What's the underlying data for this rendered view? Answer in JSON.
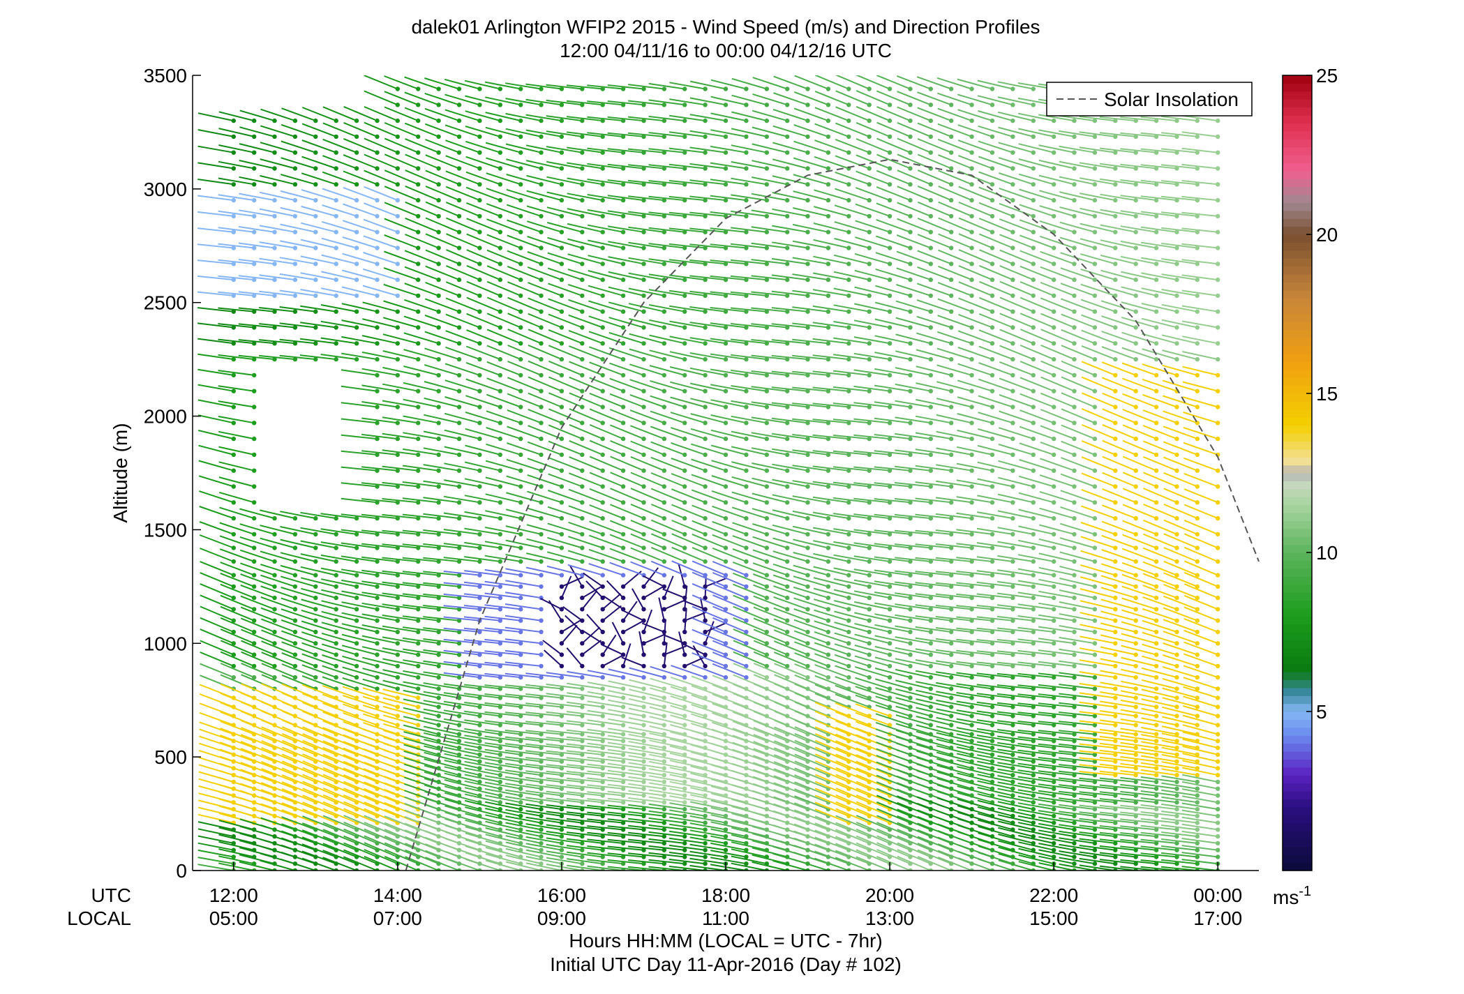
{
  "chart_data": {
    "type": "wind-barb-profile",
    "title": "dalek01 Arlington WFIP2 2015 - Wind Speed (m/s) and Direction Profiles",
    "subtitle": "12:00 04/11/16 to 00:00 04/12/16  UTC",
    "ylabel": "Altitude (m)",
    "xlabel": "Hours HH:MM  (LOCAL = UTC - 7hr)",
    "xlabel2": "Initial UTC Day 11-Apr-2016 (Day # 102)",
    "row_label_utc": "UTC",
    "row_label_local": "LOCAL",
    "xlim_hours_utc": [
      11.5,
      24.5
    ],
    "ylim": [
      0,
      3500
    ],
    "y_ticks": [
      "0",
      "500",
      "1000",
      "1500",
      "2000",
      "2500",
      "3000",
      "3500"
    ],
    "x_ticks_utc": [
      "12:00",
      "14:00",
      "16:00",
      "18:00",
      "20:00",
      "22:00",
      "00:00"
    ],
    "x_ticks_local": [
      "05:00",
      "07:00",
      "09:00",
      "11:00",
      "13:00",
      "15:00",
      "17:00"
    ],
    "legend": {
      "entries": [
        "Solar Insolation"
      ],
      "placement": "top-right"
    },
    "solar_insolation_curve": {
      "style": "dashed",
      "color": "#555555",
      "points": [
        [
          14.1,
          0
        ],
        [
          15,
          1100
        ],
        [
          16,
          1950
        ],
        [
          17,
          2500
        ],
        [
          18,
          2870
        ],
        [
          19,
          3060
        ],
        [
          20,
          3130
        ],
        [
          21,
          3060
        ],
        [
          22,
          2800
        ],
        [
          23,
          2420
        ],
        [
          24,
          1820
        ],
        [
          24.5,
          1360
        ]
      ]
    },
    "colorbar": {
      "range": [
        0,
        25
      ],
      "ticks": [
        "5",
        "10",
        "15",
        "20",
        "25"
      ],
      "unit_label": "ms",
      "unit_exponent": "-1",
      "stops": [
        [
          0,
          "#0b0a3a"
        ],
        [
          2,
          "#2a0f80"
        ],
        [
          3,
          "#5a20c0"
        ],
        [
          4.3,
          "#6c8ef0"
        ],
        [
          5,
          "#86b6f4"
        ],
        [
          5.6,
          "#3a8aa0"
        ],
        [
          6.3,
          "#0a7a10"
        ],
        [
          8,
          "#1c9c1c"
        ],
        [
          10,
          "#5cb45c"
        ],
        [
          11.5,
          "#a8d4a0"
        ],
        [
          12.2,
          "#c8d8c0"
        ],
        [
          12.5,
          "#b0b0b0"
        ],
        [
          12.8,
          "#f2e0a0"
        ],
        [
          14,
          "#f4d000"
        ],
        [
          16,
          "#f0a010"
        ],
        [
          18,
          "#c8863a"
        ],
        [
          20,
          "#7a5030"
        ],
        [
          21,
          "#a08890"
        ],
        [
          22,
          "#f06090"
        ],
        [
          23.5,
          "#e03050"
        ],
        [
          25,
          "#a00010"
        ]
      ]
    },
    "barb_grid": {
      "time_step_hours": 0.25,
      "altitudes_m": [
        0,
        30,
        60,
        90,
        120,
        150,
        180,
        210,
        240,
        270,
        300,
        330,
        360,
        390,
        420,
        450,
        480,
        510,
        540,
        570,
        600,
        640,
        680,
        720,
        760,
        800,
        850,
        900,
        950,
        1000,
        1050,
        1100,
        1150,
        1200,
        1250,
        1300,
        1360,
        1420,
        1480,
        1550,
        1620,
        1690,
        1760,
        1830,
        1900,
        1970,
        2040,
        2110,
        2180,
        2250,
        2320,
        2390,
        2460,
        2530,
        2600,
        2670,
        2740,
        2810,
        2880,
        2950,
        3020,
        3090,
        3160,
        3230,
        3300,
        3370,
        3440
      ],
      "speed_regions": [
        {
          "description": "weak jet core",
          "t": [
            15.9,
            17.9
          ],
          "z": [
            880,
            1280
          ],
          "speed": 1.5
        },
        {
          "description": "weak shear edge",
          "t": [
            15.0,
            18.4
          ],
          "z": [
            820,
            1320
          ],
          "speed": 4.0
        },
        {
          "description": "upper light winds",
          "t": [
            12.0,
            14.0
          ],
          "z": [
            2500,
            2950
          ],
          "speed": 5.0
        },
        {
          "description": "low strong winds",
          "t": [
            12.0,
            14.4
          ],
          "z": [
            200,
            780
          ],
          "speed": 14.0
        },
        {
          "description": "low strong winds",
          "t": [
            19.4,
            20.2
          ],
          "z": [
            200,
            700
          ],
          "speed": 14.0
        },
        {
          "description": "evening strong winds",
          "t": [
            22.6,
            24.0
          ],
          "z": [
            400,
            2200
          ],
          "speed": 14.0
        }
      ]
    }
  }
}
